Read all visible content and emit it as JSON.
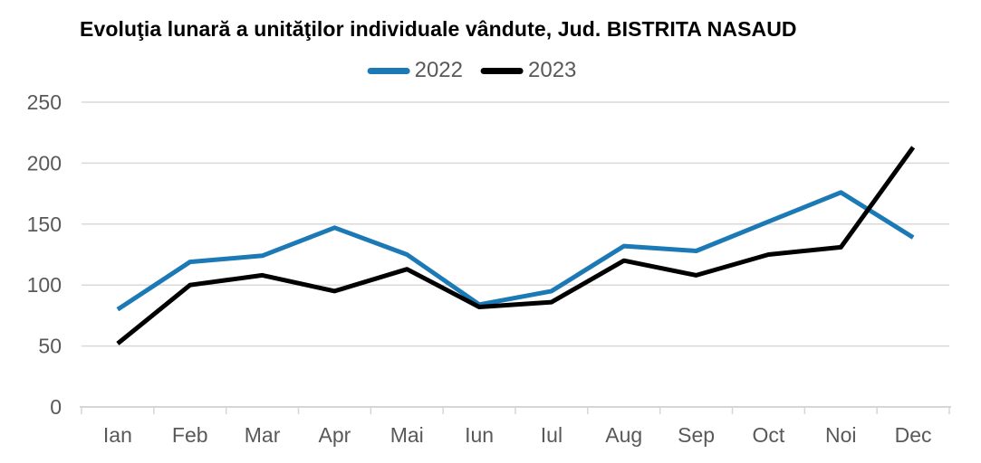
{
  "title": "Evoluţia lunară a unităţilor individuale vândute, Jud. BISTRITA NASAUD",
  "legend": {
    "items": [
      {
        "label": "2022",
        "color": "#1b7ab5"
      },
      {
        "label": "2023",
        "color": "#000000"
      }
    ]
  },
  "chart_data": {
    "type": "line",
    "title": "Evoluţia lunară a unităţilor individuale vândute, Jud. BISTRITA NASAUD",
    "categories": [
      "Ian",
      "Feb",
      "Mar",
      "Apr",
      "Mai",
      "Iun",
      "Iul",
      "Aug",
      "Sep",
      "Oct",
      "Noi",
      "Dec"
    ],
    "series": [
      {
        "name": "2022",
        "color": "#1b7ab5",
        "values": [
          80,
          119,
          124,
          147,
          125,
          84,
          95,
          132,
          128,
          152,
          176,
          139
        ]
      },
      {
        "name": "2023",
        "color": "#000000",
        "values": [
          52,
          100,
          108,
          95,
          113,
          82,
          86,
          120,
          108,
          125,
          131,
          213
        ]
      }
    ],
    "xlabel": "",
    "ylabel": "",
    "ylim": [
      0,
      250
    ],
    "yticks": [
      0,
      50,
      100,
      150,
      200,
      250
    ],
    "grid": true,
    "legend_position": "top-center",
    "styles": {
      "grid_color": "#d9d9d9",
      "axis_color": "#d6d6d6",
      "tick_label_color": "#595959",
      "tick_font_size": 23,
      "line_width": 5
    }
  }
}
